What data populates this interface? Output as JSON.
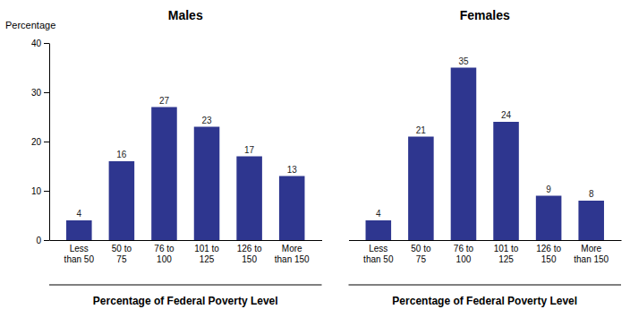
{
  "chart_data": [
    {
      "type": "bar",
      "title": "Males",
      "categories": [
        "Less\nthan 50",
        "50 to\n75",
        "76 to\n100",
        "101 to\n125",
        "126 to\n150",
        "More\nthan 150"
      ],
      "values": [
        4,
        16,
        27,
        23,
        17,
        13
      ],
      "color": "#2E368F",
      "ylim": [
        0,
        40
      ],
      "yticks": [
        0,
        10,
        20,
        30,
        40
      ],
      "y_label": "Percentage",
      "x_label": "Percentage of Federal Poverty Level",
      "data_labels": true,
      "grid": false
    },
    {
      "type": "bar",
      "title": "Females",
      "categories": [
        "Less\nthan 50",
        "50 to\n75",
        "76 to\n100",
        "101 to\n125",
        "126 to\n150",
        "More\nthan 150"
      ],
      "values": [
        4,
        21,
        35,
        24,
        9,
        8
      ],
      "color": "#2E368F",
      "ylim": [
        0,
        40
      ],
      "x_label": "Percentage of Federal Poverty Level",
      "data_labels": true,
      "grid": false,
      "tick_labels": "x"
    }
  ]
}
